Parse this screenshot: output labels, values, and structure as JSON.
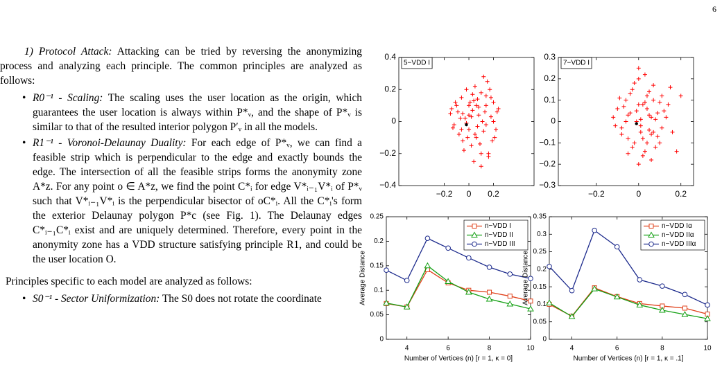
{
  "page": {
    "number": "6",
    "paragraphs": [
      {
        "bullet": false,
        "lead": "1) Protocol Attack:",
        "body": " Attacking can be tried by reversing the anonymizing process and analyzing each principle. The common principles are analyzed as follows:"
      },
      {
        "bullet": true,
        "lead": "R0⁻¹ - Scaling:",
        "body": " The scaling uses the user location as the origin, which guarantees the user location is always within P*ᵥ, and the shape of P*ᵥ is similar to that of the resulted interior polygon P′ᵥ in all the models."
      },
      {
        "bullet": true,
        "lead": "R1⁻¹ - Voronoi-Delaunay Duality:",
        "body": " For each edge of P*ᵥ, we can find a feasible strip which is perpendicular to the edge and exactly bounds the edge. The intersection of all the feasible strips forms the anonymity zone A*z. For any point o ∈ A*z, we find the point C*ᵢ for edge V*ᵢ₋₁V*ᵢ of P*ᵥ such that V*ᵢ₋₁V*ᵢ is the perpendicular bisector of oC*ᵢ. All the C*ᵢ's form the exterior Delaunay polygon P*c (see Fig. 1). The Delaunay edges C*ᵢ₋₁C*ᵢ exist and are uniquely determined. Therefore, every point in the anonymity zone has a VDD structure satisfying principle R1, and could be the user location O."
      },
      {
        "bullet": false,
        "lead": "",
        "body": "Principles specific to each model are analyzed as follows:"
      },
      {
        "bullet": true,
        "lead": "S0⁻¹ - Sector Uniformization:",
        "body": " The S0 does not rotate the coordinate"
      }
    ]
  },
  "chart_data": [
    {
      "type": "scatter",
      "label": "5−VDD I",
      "xlim": [
        -0.57,
        0.53
      ],
      "ylim": [
        -0.4,
        0.4
      ],
      "xticks": [
        {
          "value": -0.2,
          "label": "−0.2"
        },
        0,
        0.2
      ],
      "yticks": [
        {
          "value": -0.4,
          "label": "−0.4"
        },
        {
          "value": -0.2,
          "label": "−0.2"
        },
        0,
        0.2,
        0.4
      ],
      "series": [
        {
          "color": "#ff0000",
          "marker": "plus",
          "x": [
            -0.15,
            -0.12,
            -0.1,
            -0.08,
            -0.06,
            -0.05,
            -0.03,
            -0.02,
            0,
            0.01,
            0.02,
            0.03,
            0.05,
            0.06,
            0.08,
            0.1,
            0.12,
            0.14,
            0.16,
            0.18,
            0.2,
            0.22,
            0.24,
            -0.13,
            -0.09,
            -0.04,
            0.0,
            0.04,
            0.07,
            0.11,
            0.15,
            0.19,
            -0.11,
            -0.07,
            -0.01,
            0.03,
            0.09,
            0.13,
            0.17,
            0.21,
            -0.14,
            -0.06,
            0.02,
            0.06,
            0.1,
            0.14,
            0.18,
            0.05,
            0.12,
            0.08,
            -0.02,
            0.16,
            0.2,
            0.04,
            0.1,
            -0.05,
            0.07,
            0.14,
            0.23,
            0.0
          ],
          "values": [
            0.05,
            -0.02,
            0.1,
            -0.08,
            0.15,
            -0.12,
            0.02,
            0.2,
            -0.05,
            0.12,
            -0.15,
            0.07,
            0.22,
            -0.1,
            0.04,
            0.18,
            -0.06,
            0.1,
            -0.2,
            0.03,
            0.12,
            -0.05,
            0.08,
            -0.04,
            0.06,
            -0.18,
            0.1,
            -0.25,
            0.14,
            0.0,
            0.25,
            -0.12,
            0.12,
            0.02,
            -0.1,
            0.17,
            -0.14,
            0.06,
            0.2,
            -0.1,
            0.08,
            -0.05,
            0.03,
            0.1,
            -0.2,
            -0.02,
            0.15,
            -0.08,
            0.28,
            0.09,
            -0.01,
            -0.22,
            0.0,
            0.13,
            -0.28,
            0.05,
            -0.03,
            0.16,
            0.06,
            0.04
          ]
        },
        {
          "color": "#000000",
          "marker": "dot",
          "x": [
            -0.02
          ],
          "values": [
            -0.02
          ]
        }
      ]
    },
    {
      "type": "scatter",
      "label": "7−VDD I",
      "xlim": [
        -0.38,
        0.26
      ],
      "ylim": [
        -0.3,
        0.3
      ],
      "xticks": [
        {
          "value": -0.2,
          "label": "−0.2"
        },
        0,
        0.2
      ],
      "yticks": [
        {
          "value": -0.3,
          "label": "−0.3"
        },
        {
          "value": -0.2,
          "label": "−0.2"
        },
        {
          "value": -0.1,
          "label": "−0.1"
        },
        0,
        0.1,
        0.2,
        0.3
      ],
      "series": [
        {
          "color": "#ff0000",
          "marker": "plus",
          "x": [
            -0.12,
            -0.1,
            -0.08,
            -0.06,
            -0.05,
            -0.04,
            -0.03,
            -0.02,
            -0.01,
            0,
            0.01,
            0.02,
            0.03,
            0.04,
            0.05,
            0.06,
            0.07,
            0.08,
            0.1,
            0.12,
            0.14,
            0.16,
            0.2,
            -0.11,
            -0.07,
            -0.03,
            0.0,
            0.03,
            0.06,
            0.09,
            0.11,
            -0.09,
            -0.05,
            -0.01,
            0.02,
            0.05,
            0.08,
            0.13,
            -0.06,
            0.0,
            0.04,
            0.07,
            -0.02,
            0.01,
            0.05,
            0.1,
            -0.04,
            0.02,
            0.06,
            0.15,
            0.18,
            -0.08,
            0.03,
            0.09,
            0.0,
            -0.05,
            0.04,
            0.11,
            0.01,
            0.07
          ],
          "values": [
            0.02,
            0.06,
            -0.03,
            0.1,
            -0.08,
            0.04,
            0.15,
            -0.1,
            0.0,
            0.2,
            -0.05,
            0.08,
            -0.14,
            0.12,
            0.03,
            -0.06,
            0.17,
            0.01,
            -0.1,
            0.05,
            0.08,
            -0.05,
            0.12,
            -0.02,
            0.07,
            -0.12,
            0.25,
            0.09,
            -0.18,
            0.04,
            -0.03,
            0.11,
            -0.15,
            0.05,
            -0.08,
            0.14,
            -0.12,
            0.02,
            0.0,
            -0.2,
            0.06,
            0.1,
            0.18,
            -0.02,
            -0.04,
            0.09,
            0.13,
            -0.16,
            0.02,
            0.16,
            -0.14,
            -0.06,
            0.22,
            -0.07,
            0.08,
            0.03,
            -0.1,
            0.12,
            0.01,
            -0.05
          ]
        },
        {
          "color": "#000000",
          "marker": "dot",
          "x": [
            -0.01
          ],
          "values": [
            -0.01
          ]
        }
      ]
    },
    {
      "type": "line",
      "x_label": "Number of Vertices (n) [r = 1, κ = 0]",
      "y_label": "Average Distance",
      "x": [
        3,
        4,
        5,
        6,
        7,
        8,
        9,
        10
      ],
      "xlim": [
        3,
        10
      ],
      "ylim": [
        0,
        0.25
      ],
      "xticks": [
        4,
        6,
        8,
        10
      ],
      "yticks": [
        0,
        0.05,
        0.1,
        0.15,
        0.2,
        0.25
      ],
      "legend": "upper right",
      "series": [
        {
          "name": "n−VDD I",
          "color": "#e0401a",
          "marker": "square",
          "values": [
            0.073,
            0.066,
            0.142,
            0.115,
            0.1,
            0.096,
            0.088,
            0.078
          ]
        },
        {
          "name": "n−VDD II",
          "color": "#14a014",
          "marker": "triangle",
          "values": [
            0.074,
            0.066,
            0.15,
            0.118,
            0.096,
            0.082,
            0.072,
            0.062
          ]
        },
        {
          "name": "n−VDD III",
          "color": "#1c2a8c",
          "marker": "circle",
          "values": [
            0.141,
            0.12,
            0.206,
            0.186,
            0.166,
            0.147,
            0.133,
            0.124
          ]
        }
      ]
    },
    {
      "type": "line",
      "x_label": "Number of Vertices (n) [r = 1, κ = .1]",
      "y_label": "Average Distance",
      "x": [
        3,
        4,
        5,
        6,
        7,
        8,
        9,
        10
      ],
      "xlim": [
        3,
        10
      ],
      "ylim": [
        0,
        0.35
      ],
      "xticks": [
        4,
        6,
        8,
        10
      ],
      "yticks": [
        0,
        0.05,
        0.1,
        0.15,
        0.2,
        0.25,
        0.3,
        0.35
      ],
      "legend": "upper right",
      "series": [
        {
          "name": "n−VDD Iα",
          "color": "#e0401a",
          "marker": "square",
          "values": [
            0.1,
            0.066,
            0.147,
            0.122,
            0.102,
            0.095,
            0.089,
            0.072
          ]
        },
        {
          "name": "n−VDD IIα",
          "color": "#14a014",
          "marker": "triangle",
          "values": [
            0.104,
            0.065,
            0.144,
            0.121,
            0.098,
            0.083,
            0.071,
            0.059
          ]
        },
        {
          "name": "n−VDD IIIα",
          "color": "#1c2a8c",
          "marker": "circle",
          "values": [
            0.208,
            0.139,
            0.311,
            0.264,
            0.17,
            0.152,
            0.128,
            0.098
          ]
        }
      ]
    }
  ]
}
